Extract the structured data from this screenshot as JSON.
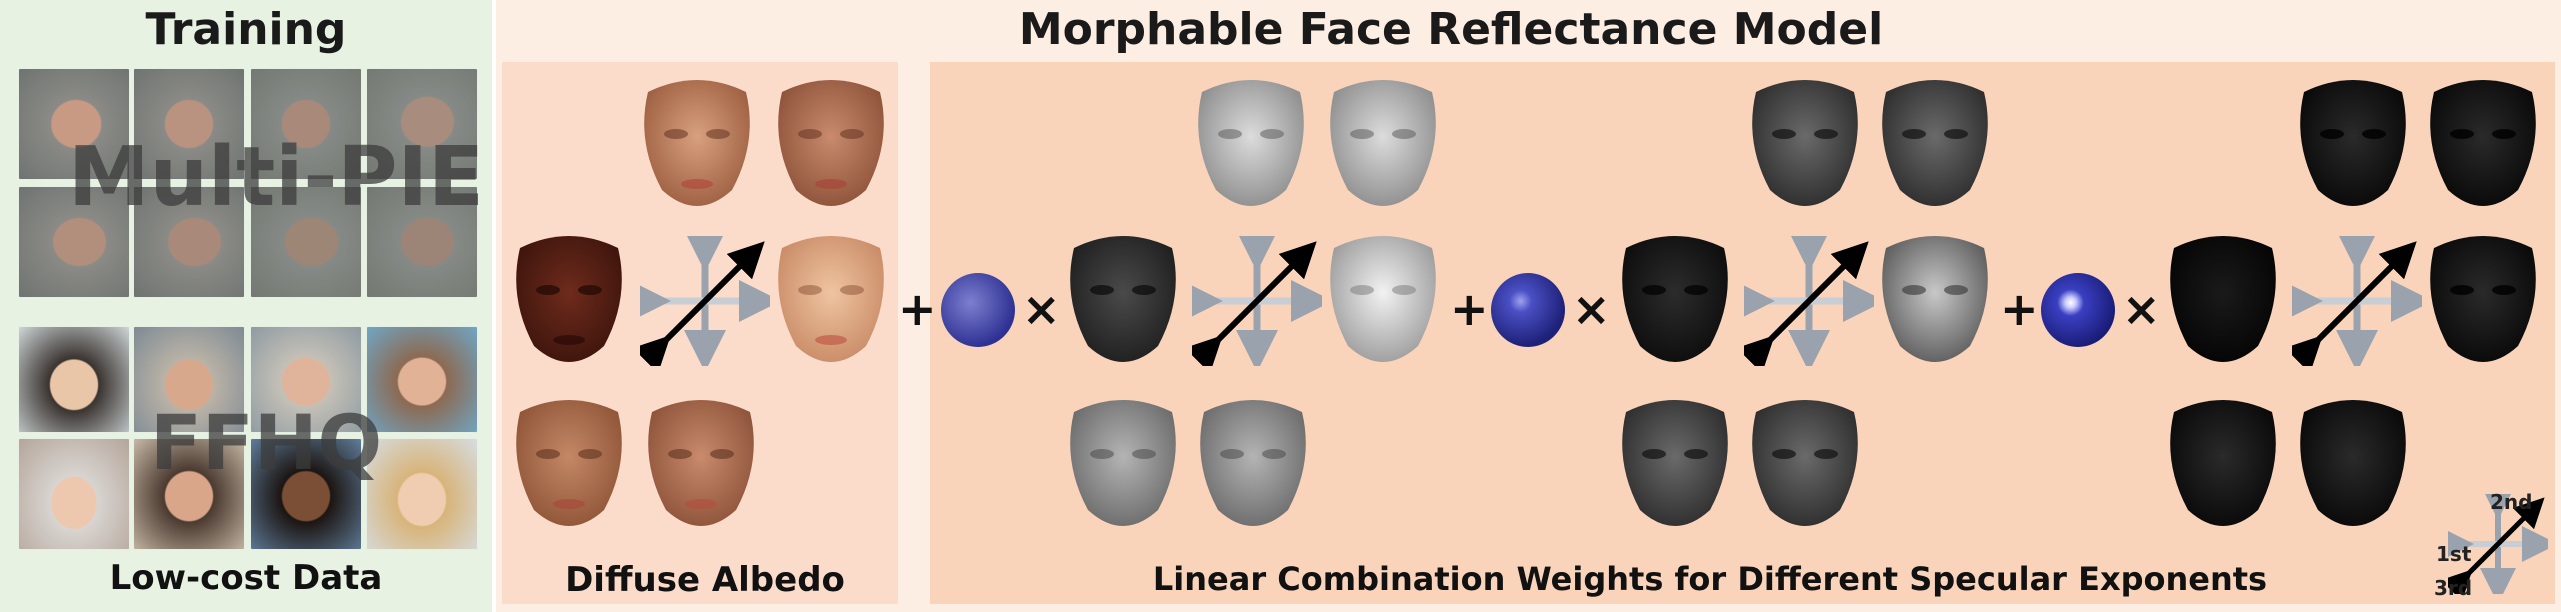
{
  "training": {
    "title": "Training",
    "dataset_labels": [
      "Multi-PIE",
      "FFHQ"
    ],
    "caption": "Low-cost Data"
  },
  "model": {
    "title": "Morphable Face Reflectance Model",
    "diffuse_caption": "Diffuse Albedo",
    "specular_caption": "Linear Combination Weights for Different Specular Exponents"
  },
  "operators": {
    "plus": "+",
    "times": "×"
  },
  "legend": {
    "first": "1st",
    "second": "2nd",
    "third": "3rd"
  },
  "colors": {
    "training_bg": "#e7f2e2",
    "diffuse_bg": "#fbdccb",
    "specular_bg": "#f9d4bb",
    "outer_bg": "#fdeee4",
    "sphere_color": "#3b3f9e",
    "arrow_gray": "#9aa3ad",
    "arrow_black": "#000000"
  }
}
